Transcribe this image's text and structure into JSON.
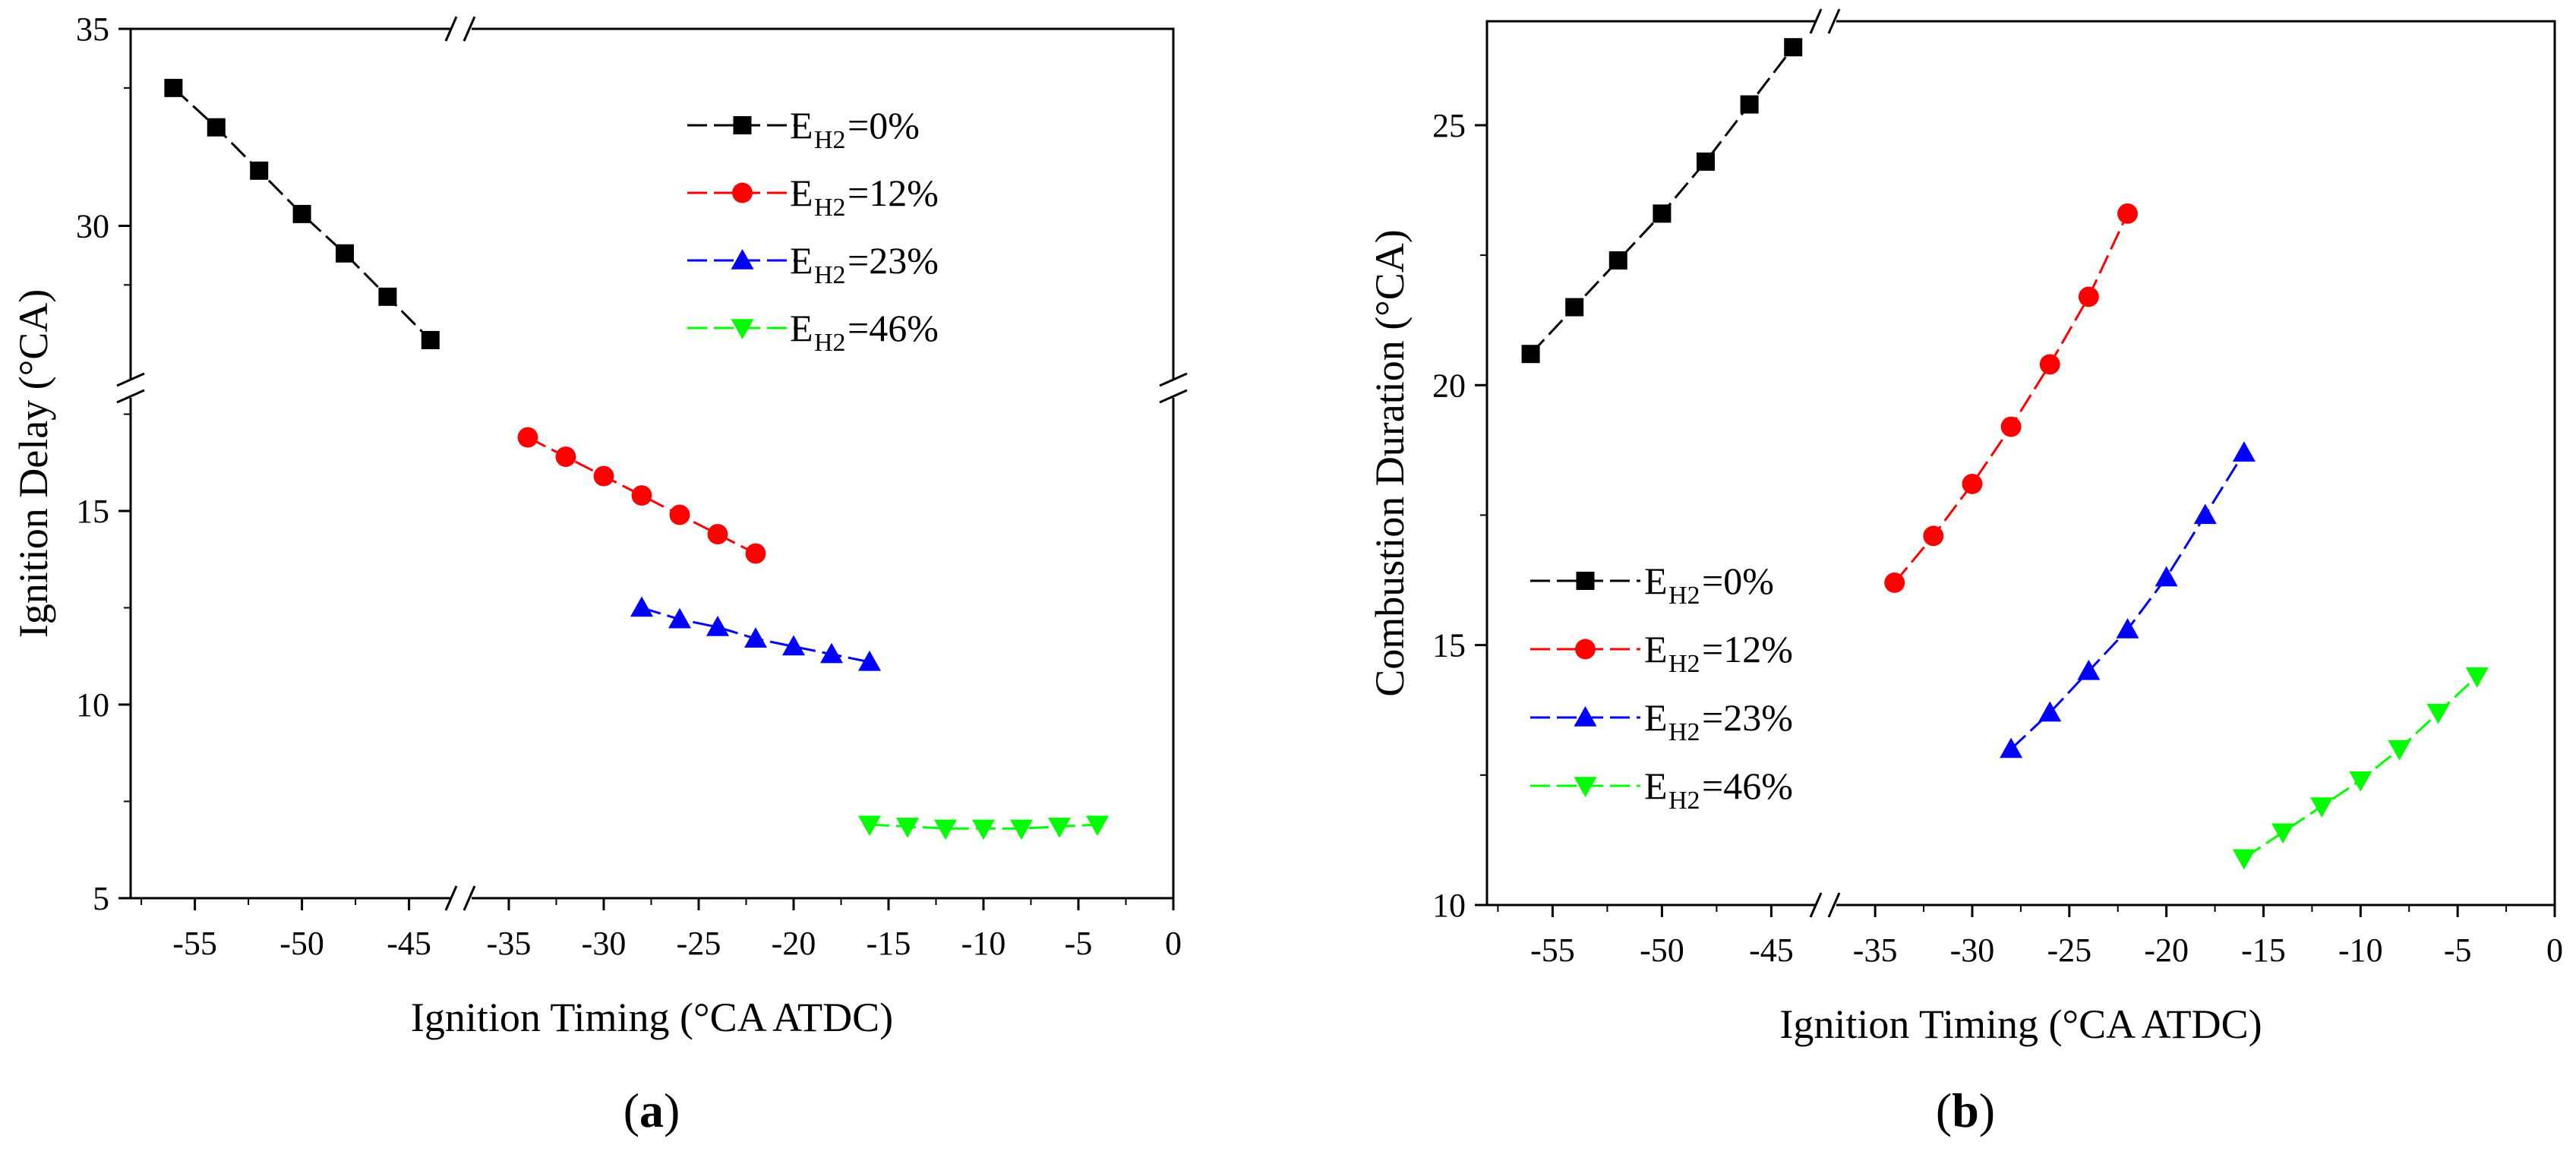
{
  "chart_data": [
    {
      "panel": "a",
      "type": "line",
      "caption_parts": [
        "(",
        "a",
        ")"
      ],
      "xlabel": "Ignition Timing (°CA ATDC)",
      "ylabel": "Ignition Delay (°CA)",
      "xlim": [
        -58,
        0
      ],
      "x_break": [
        -43,
        -37
      ],
      "x_ticks": [
        -55,
        -50,
        -45,
        -35,
        -30,
        -25,
        -20,
        -15,
        -10,
        -5,
        0
      ],
      "x_tick_labels": [
        "-55",
        "-50",
        "-45",
        "-35",
        "-30",
        "-25",
        "-20",
        "-15",
        "-10",
        "-5",
        "0"
      ],
      "y_segments": [
        [
          5,
          18
        ],
        [
          26,
          35
        ]
      ],
      "y_ticks": [
        5,
        10,
        15,
        30,
        35
      ],
      "y_tick_labels": [
        "5",
        "10",
        "15",
        "30",
        "35"
      ],
      "legend_position": "top-right",
      "series": [
        {
          "name_main": "E",
          "name_sub": "H2",
          "name_tail": "=0%",
          "color": "#000000",
          "marker": "square",
          "x": [
            -56,
            -54,
            -52,
            -50,
            -48,
            -46,
            -44
          ],
          "y": [
            33.5,
            32.5,
            31.4,
            30.3,
            29.3,
            28.2,
            27.1
          ]
        },
        {
          "name_main": "E",
          "name_sub": "H2",
          "name_tail": "=12%",
          "color": "#ff0000",
          "marker": "circle",
          "x": [
            -34,
            -32,
            -30,
            -28,
            -26,
            -24,
            -22
          ],
          "y": [
            16.9,
            16.4,
            15.9,
            15.4,
            14.9,
            14.4,
            13.9
          ]
        },
        {
          "name_main": "E",
          "name_sub": "H2",
          "name_tail": "=23%",
          "color": "#0000ff",
          "marker": "triangle-up",
          "x": [
            -28,
            -26,
            -24,
            -22,
            -20,
            -18,
            -16
          ],
          "y": [
            12.5,
            12.2,
            12.0,
            11.7,
            11.5,
            11.3,
            11.1
          ]
        },
        {
          "name_main": "E",
          "name_sub": "H2",
          "name_tail": "=46%",
          "color": "#00ff00",
          "marker": "triangle-down",
          "x": [
            -16,
            -14,
            -12,
            -10,
            -8,
            -6,
            -4
          ],
          "y": [
            6.9,
            6.85,
            6.8,
            6.8,
            6.8,
            6.85,
            6.9
          ]
        }
      ]
    },
    {
      "panel": "b",
      "type": "line",
      "caption_parts": [
        "(",
        "b",
        ")"
      ],
      "xlabel": "Ignition Timing (°CA ATDC)",
      "ylabel": "Combustion Duration  (°CA)",
      "xlim": [
        -58,
        0
      ],
      "x_break": [
        -43,
        -37
      ],
      "x_ticks": [
        -55,
        -50,
        -45,
        -35,
        -30,
        -25,
        -20,
        -15,
        -10,
        -5,
        0
      ],
      "x_tick_labels": [
        "-55",
        "-50",
        "-45",
        "-35",
        "-30",
        "-25",
        "-20",
        "-15",
        "-10",
        "-5",
        "0"
      ],
      "ylim": [
        10,
        27
      ],
      "y_ticks": [
        10,
        15,
        20,
        25
      ],
      "y_tick_labels": [
        "10",
        "15",
        "20",
        "25"
      ],
      "legend_position": "bottom-left",
      "series": [
        {
          "name_main": "E",
          "name_sub": "H2",
          "name_tail": "=0%",
          "color": "#000000",
          "marker": "square",
          "x": [
            -56,
            -54,
            -52,
            -50,
            -48,
            -46,
            -44
          ],
          "y": [
            20.6,
            21.5,
            22.4,
            23.3,
            24.3,
            25.4,
            26.5
          ]
        },
        {
          "name_main": "E",
          "name_sub": "H2",
          "name_tail": "=12%",
          "color": "#ff0000",
          "marker": "circle",
          "x": [
            -34,
            -32,
            -30,
            -28,
            -26,
            -24,
            -22
          ],
          "y": [
            16.2,
            17.1,
            18.1,
            19.2,
            20.4,
            21.7,
            23.3
          ]
        },
        {
          "name_main": "E",
          "name_sub": "H2",
          "name_tail": "=23%",
          "color": "#0000ff",
          "marker": "triangle-up",
          "x": [
            -28,
            -26,
            -24,
            -22,
            -20,
            -18,
            -16
          ],
          "y": [
            13.0,
            13.7,
            14.5,
            15.3,
            16.3,
            17.5,
            18.7
          ]
        },
        {
          "name_main": "E",
          "name_sub": "H2",
          "name_tail": "=46%",
          "color": "#00ff00",
          "marker": "triangle-down",
          "x": [
            -16,
            -14,
            -12,
            -10,
            -8,
            -6,
            -4
          ],
          "y": [
            10.9,
            11.4,
            11.9,
            12.4,
            13.0,
            13.7,
            14.4
          ]
        }
      ]
    }
  ]
}
